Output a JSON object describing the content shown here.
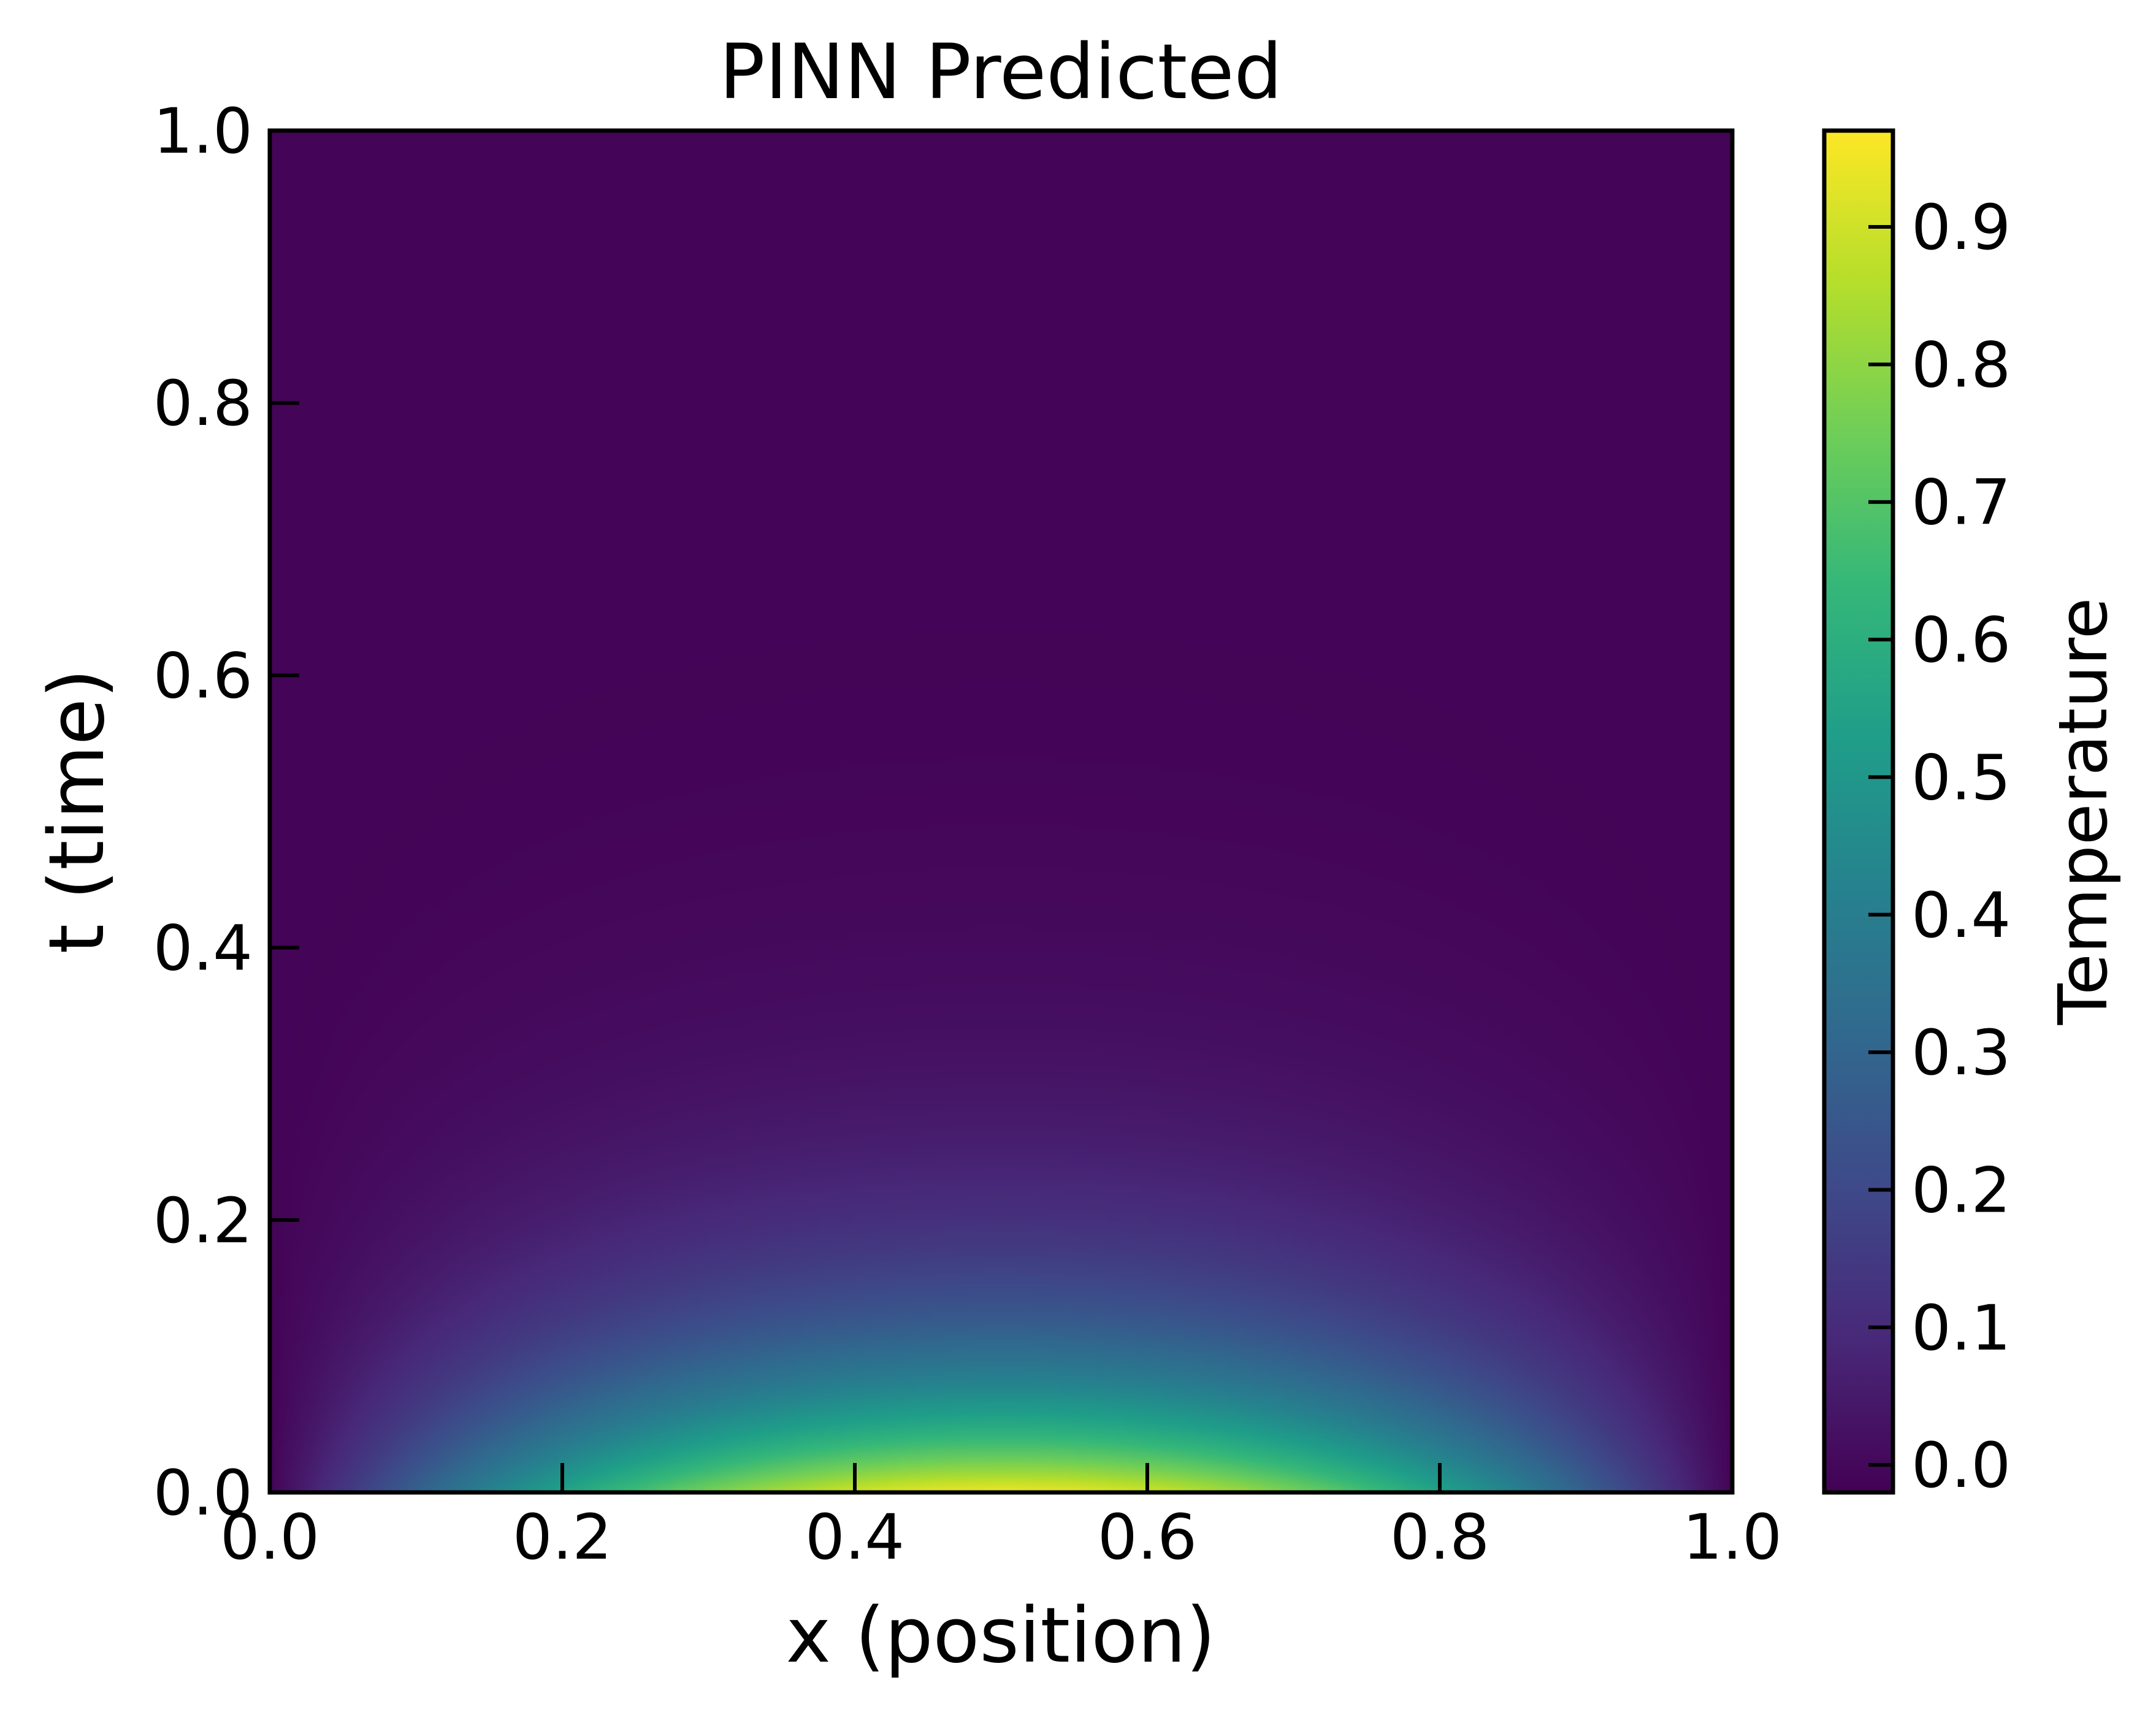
{
  "chart_data": {
    "type": "heatmap",
    "title": "PINN Predicted",
    "xlabel": "x (position)",
    "ylabel": "t (time)",
    "xlim": [
      0.0,
      1.0
    ],
    "ylim": [
      0.0,
      1.0
    ],
    "x_ticks": [
      "0.0",
      "0.2",
      "0.4",
      "0.6",
      "0.8",
      "1.0"
    ],
    "y_ticks": [
      "0.0",
      "0.2",
      "0.4",
      "0.6",
      "0.8",
      "1.0"
    ],
    "x_tick_values": [
      0.0,
      0.2,
      0.4,
      0.6,
      0.8,
      1.0
    ],
    "y_tick_values": [
      0.0,
      0.2,
      0.4,
      0.6,
      0.8,
      1.0
    ],
    "colormap": "viridis",
    "colorbar": {
      "label": "Temperature",
      "range": [
        -0.02,
        0.97
      ],
      "ticks": [
        "0.0",
        "0.1",
        "0.2",
        "0.3",
        "0.4",
        "0.5",
        "0.6",
        "0.7",
        "0.8",
        "0.9"
      ],
      "tick_values": [
        0.0,
        0.1,
        0.2,
        0.3,
        0.4,
        0.5,
        0.6,
        0.7,
        0.8,
        0.9
      ]
    },
    "grid": false,
    "field": "u(x,t) ≈ sin(pi·x)·exp(-pi²·t), max ≈ 0.96 at x=0.5, t=0"
  },
  "colors": {
    "viridis_stops": [
      "#440154",
      "#482878",
      "#3e4989",
      "#31688e",
      "#26828e",
      "#1f9e89",
      "#35b779",
      "#6ece58",
      "#b5de2b",
      "#fde725"
    ],
    "frame": "#000000",
    "background": "#ffffff"
  }
}
